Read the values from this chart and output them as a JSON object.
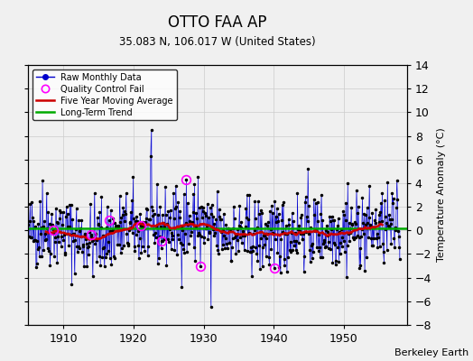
{
  "title": "OTTO FAA AP",
  "subtitle": "35.083 N, 106.017 W (United States)",
  "ylabel": "Temperature Anomaly (°C)",
  "credit": "Berkeley Earth",
  "xlim": [
    1905,
    1959
  ],
  "ylim": [
    -8,
    14
  ],
  "yticks": [
    -8,
    -6,
    -4,
    -2,
    0,
    2,
    4,
    6,
    8,
    10,
    12,
    14
  ],
  "xticks": [
    1910,
    1920,
    1930,
    1940,
    1950
  ],
  "bg_color": "#f0f0f0",
  "stem_color": "#8888ff",
  "dot_color": "#000000",
  "line_color": "#0000cc",
  "ma_color": "#cc0000",
  "trend_color": "#00aa00",
  "qc_color": "#ff00ff",
  "seed": 42
}
